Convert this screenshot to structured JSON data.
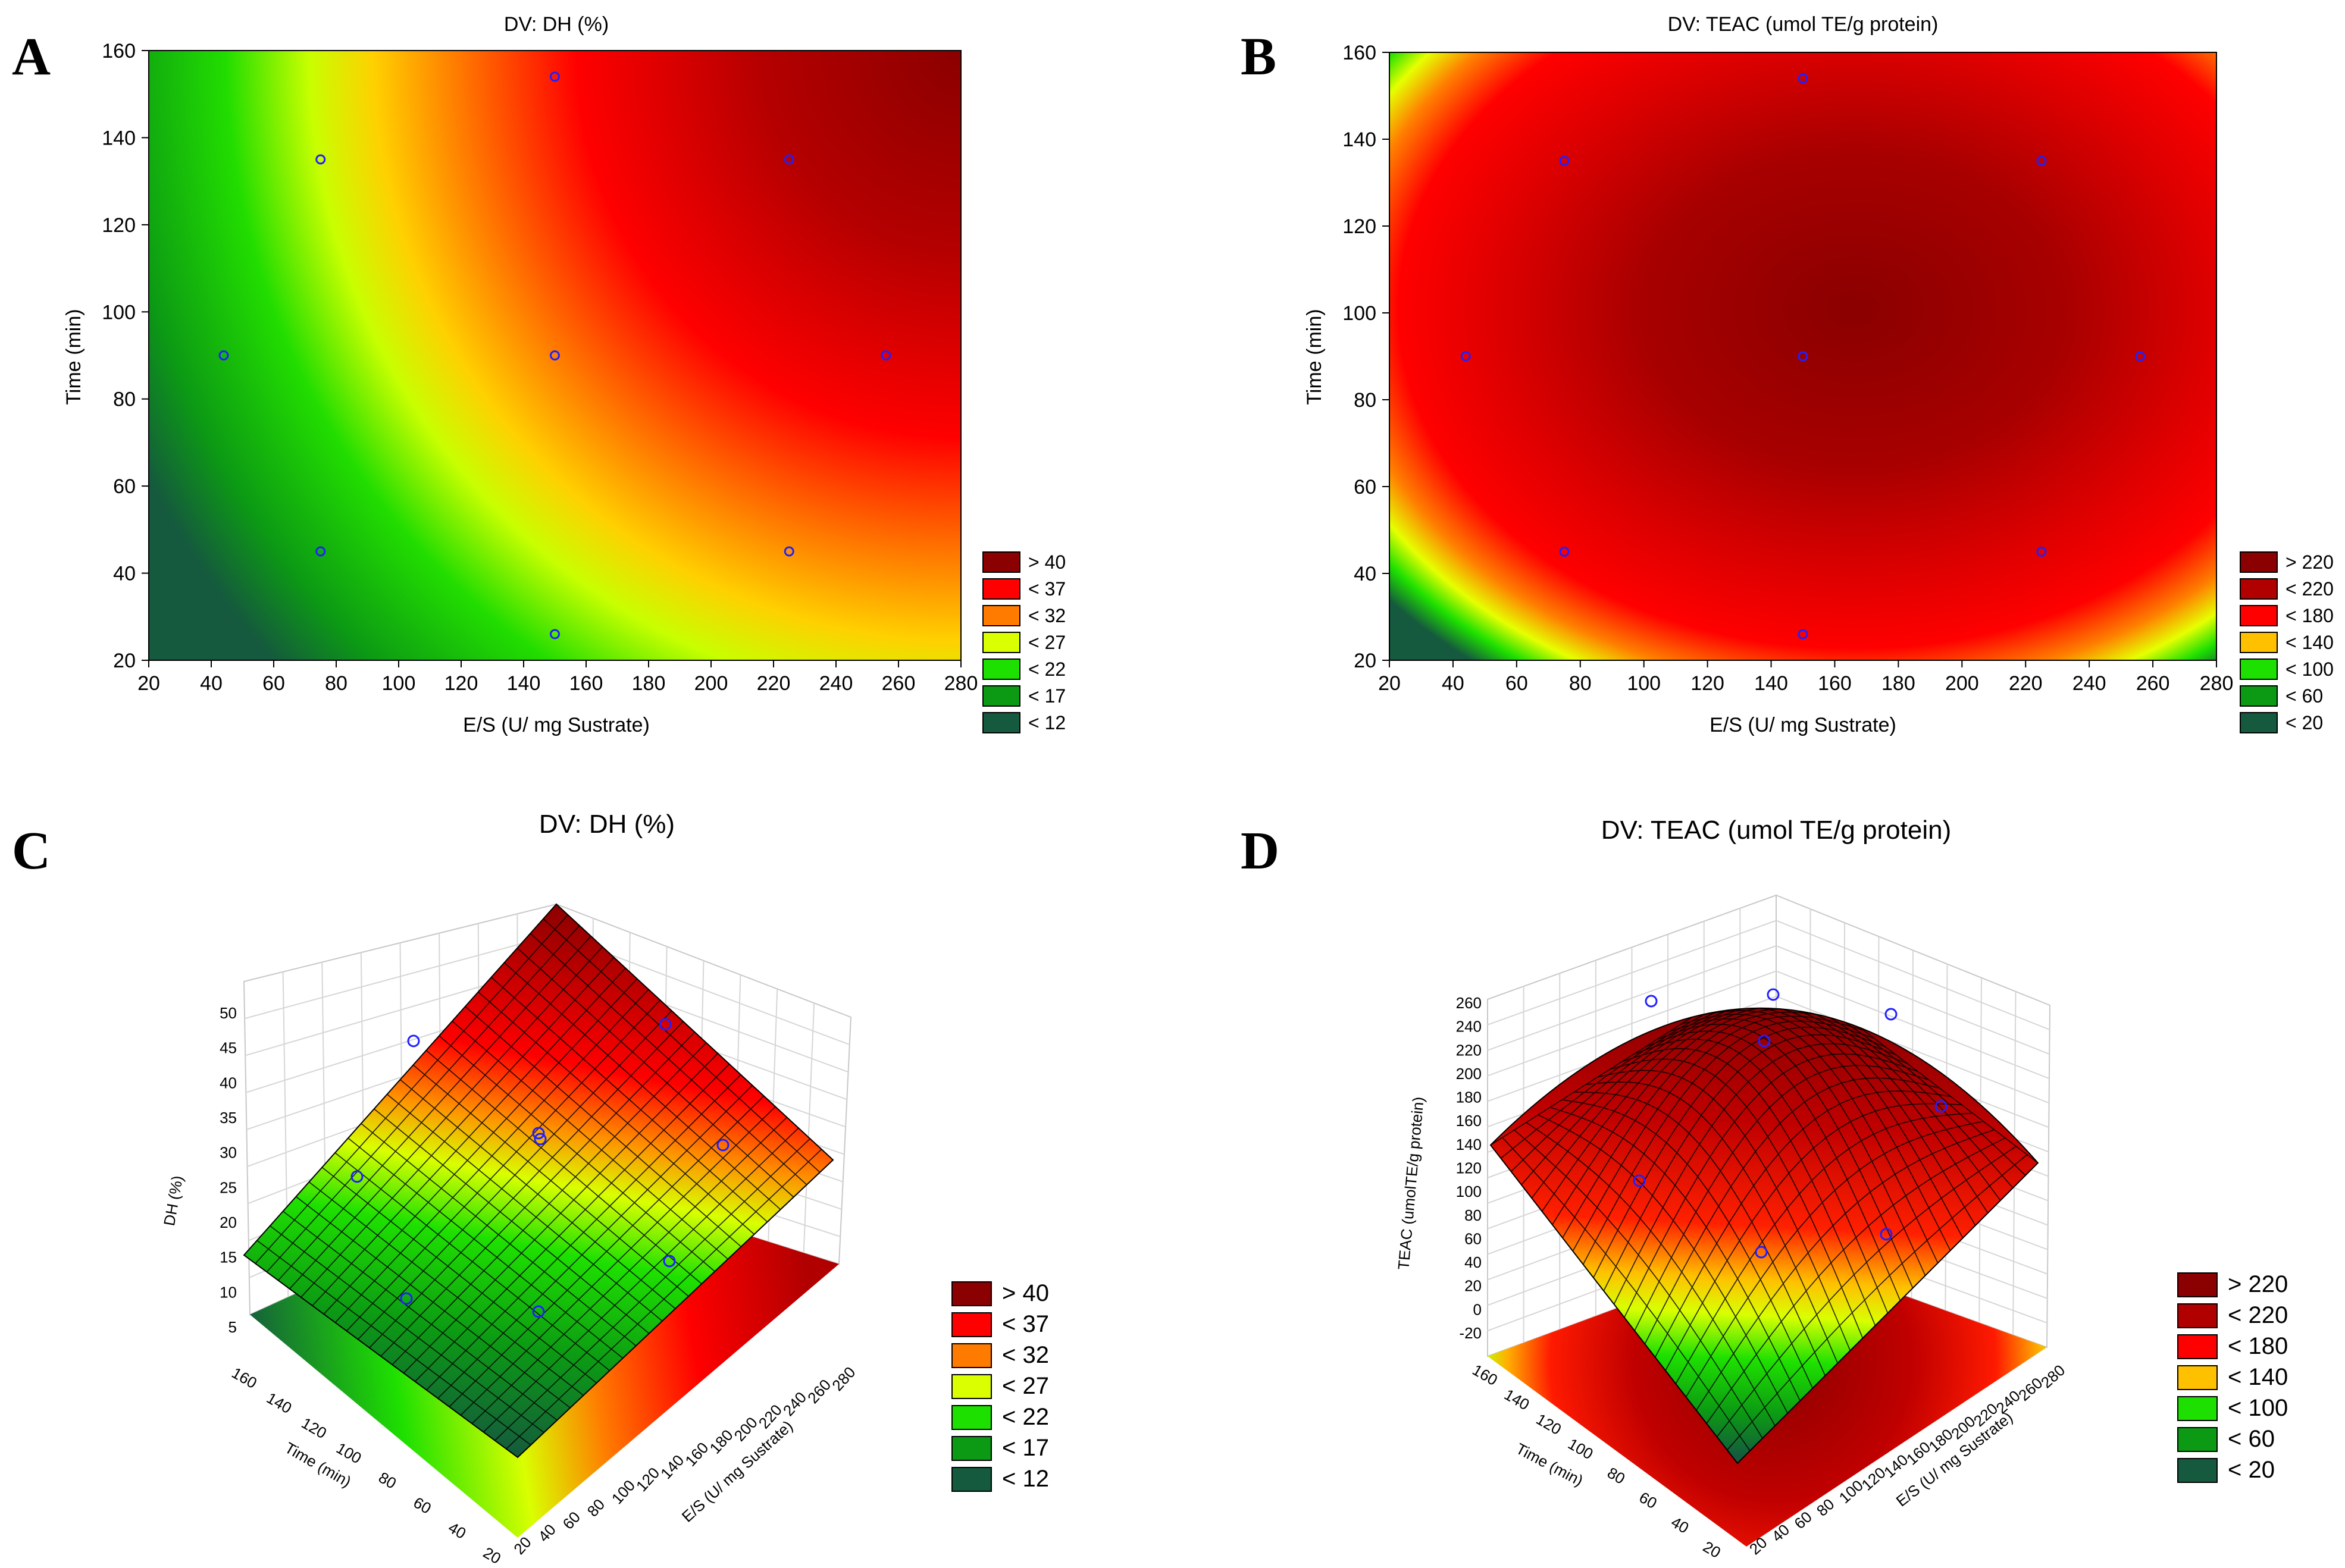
{
  "panels": {
    "A": {
      "letter": "A"
    },
    "B": {
      "letter": "B"
    },
    "C": {
      "letter": "C"
    },
    "D": {
      "letter": "D"
    }
  },
  "chart_data": [
    {
      "panel": "A",
      "type": "heatmap",
      "subtype": "contour",
      "title": "DV: DH (%)",
      "xlabel": "E/S (U/ mg Sustrate)",
      "ylabel": "Time (min)",
      "xlim": [
        20,
        280
      ],
      "ylim": [
        20,
        160
      ],
      "xticks": [
        20,
        40,
        60,
        80,
        100,
        120,
        140,
        160,
        180,
        200,
        220,
        240,
        260,
        280
      ],
      "yticks": [
        20,
        40,
        60,
        80,
        100,
        120,
        140,
        160
      ],
      "design_points": [
        {
          "x": 44,
          "y": 90
        },
        {
          "x": 75,
          "y": 135
        },
        {
          "x": 75,
          "y": 45
        },
        {
          "x": 150,
          "y": 154
        },
        {
          "x": 150,
          "y": 90
        },
        {
          "x": 150,
          "y": 26
        },
        {
          "x": 225,
          "y": 135
        },
        {
          "x": 225,
          "y": 45
        },
        {
          "x": 256,
          "y": 90
        }
      ],
      "legend": [
        {
          "label": "> 40",
          "color": "#8b0000"
        },
        {
          "label": "< 37",
          "color": "#ff0000"
        },
        {
          "label": "< 32",
          "color": "#ff7b00"
        },
        {
          "label": "< 27",
          "color": "#d9ff00"
        },
        {
          "label": "< 22",
          "color": "#1ee000"
        },
        {
          "label": "< 17",
          "color": "#0c9a14"
        },
        {
          "label": "< 12",
          "color": "#15593e"
        }
      ]
    },
    {
      "panel": "B",
      "type": "heatmap",
      "subtype": "contour",
      "title": "DV: TEAC (umol TE/g protein)",
      "xlabel": "E/S (U/ mg Sustrate)",
      "ylabel": "Time (min)",
      "xlim": [
        20,
        280
      ],
      "ylim": [
        20,
        160
      ],
      "xticks": [
        20,
        40,
        60,
        80,
        100,
        120,
        140,
        160,
        180,
        200,
        220,
        240,
        260,
        280
      ],
      "yticks": [
        20,
        40,
        60,
        80,
        100,
        120,
        140,
        160
      ],
      "design_points": [
        {
          "x": 44,
          "y": 90
        },
        {
          "x": 75,
          "y": 135
        },
        {
          "x": 75,
          "y": 45
        },
        {
          "x": 150,
          "y": 154
        },
        {
          "x": 150,
          "y": 90
        },
        {
          "x": 150,
          "y": 26
        },
        {
          "x": 225,
          "y": 135
        },
        {
          "x": 225,
          "y": 45
        },
        {
          "x": 256,
          "y": 90
        }
      ],
      "legend": [
        {
          "label": "> 220",
          "color": "#8b0000"
        },
        {
          "label": "< 220",
          "color": "#b00000"
        },
        {
          "label": "< 180",
          "color": "#ff0000"
        },
        {
          "label": "< 140",
          "color": "#ffc000"
        },
        {
          "label": "< 100",
          "color": "#1ee000"
        },
        {
          "label": "< 60",
          "color": "#0c9a14"
        },
        {
          "label": "< 20",
          "color": "#15593e"
        }
      ]
    },
    {
      "panel": "C",
      "type": "surface3d",
      "title": "DV: DH (%)",
      "xlabel": "E/S (U/ mg Sustrate)",
      "ylabel": "Time (min)",
      "zlabel": "DH (%)",
      "xticks": [
        20,
        40,
        60,
        80,
        100,
        120,
        140,
        160,
        180,
        200,
        220,
        240,
        260,
        280
      ],
      "yticks": [
        20,
        40,
        60,
        80,
        100,
        120,
        140,
        160
      ],
      "zticks": [
        5,
        10,
        15,
        20,
        25,
        30,
        35,
        40,
        45,
        50
      ],
      "legend": [
        {
          "label": "> 40",
          "color": "#8b0000"
        },
        {
          "label": "< 37",
          "color": "#ff0000"
        },
        {
          "label": "< 32",
          "color": "#ff7b00"
        },
        {
          "label": "< 27",
          "color": "#d9ff00"
        },
        {
          "label": "< 22",
          "color": "#1ee000"
        },
        {
          "label": "< 17",
          "color": "#0c9a14"
        },
        {
          "label": "< 12",
          "color": "#15593e"
        }
      ]
    },
    {
      "panel": "D",
      "type": "surface3d",
      "title": "DV: TEAC (umol TE/g protein)",
      "xlabel": "E/S (U/ mg Sustrate)",
      "ylabel": "Time (min)",
      "zlabel": "TEAC (umolTE/g protein)",
      "xticks": [
        20,
        40,
        60,
        80,
        100,
        120,
        140,
        160,
        180,
        200,
        220,
        240,
        260,
        280
      ],
      "yticks": [
        20,
        40,
        60,
        80,
        100,
        120,
        140,
        160
      ],
      "zticks": [
        -20,
        0,
        20,
        40,
        60,
        80,
        100,
        120,
        140,
        160,
        180,
        200,
        220,
        240,
        260
      ],
      "legend": [
        {
          "label": "> 220",
          "color": "#8b0000"
        },
        {
          "label": "< 220",
          "color": "#b00000"
        },
        {
          "label": "< 180",
          "color": "#ff0000"
        },
        {
          "label": "< 140",
          "color": "#ffc000"
        },
        {
          "label": "< 100",
          "color": "#1ee000"
        },
        {
          "label": "< 60",
          "color": "#0c9a14"
        },
        {
          "label": "< 20",
          "color": "#15593e"
        }
      ]
    }
  ]
}
